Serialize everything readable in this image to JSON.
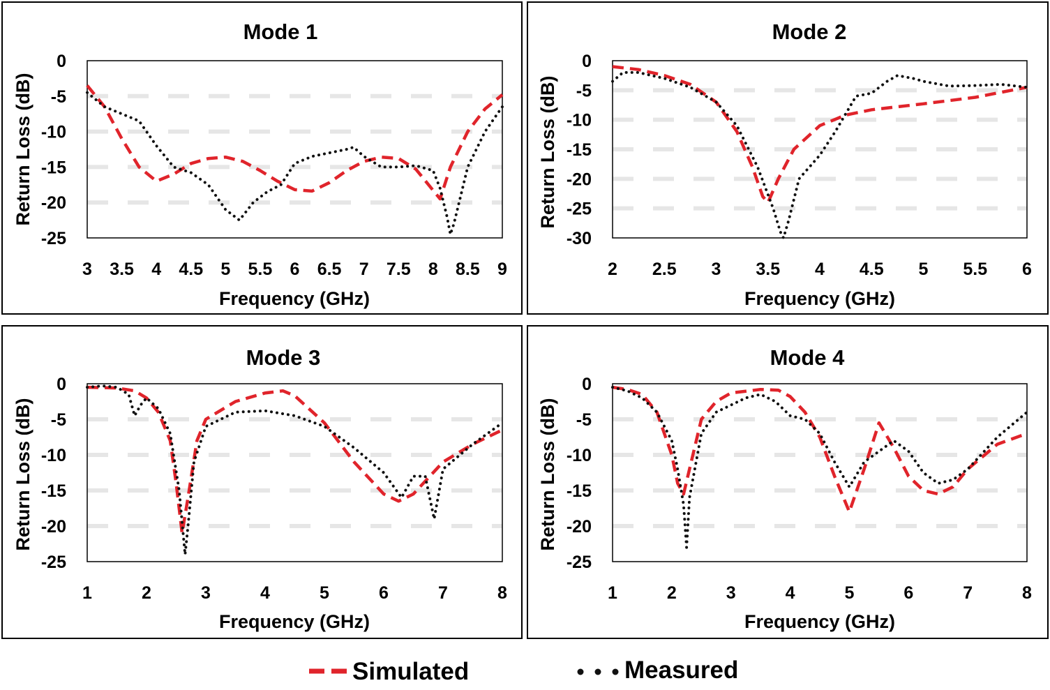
{
  "legend": {
    "simulated_label": "Simulated",
    "measured_label": "Measured"
  },
  "colors": {
    "simulated": "#e0242b",
    "measured": "#111111",
    "grid": "#e6e6e6",
    "frame": "#000000"
  },
  "chart_data": [
    {
      "type": "line",
      "title": "Mode 1",
      "xlabel": "Frequency (GHz)",
      "ylabel": "Return Loss (dB)",
      "xlim": [
        3,
        9
      ],
      "ylim": [
        -25,
        0
      ],
      "xticks": [
        3,
        3.5,
        4,
        4.5,
        5,
        5.5,
        6,
        6.5,
        7,
        7.5,
        8,
        8.5,
        9
      ],
      "yticks": [
        0,
        -5,
        -10,
        -15,
        -20,
        -25
      ],
      "series": [
        {
          "name": "Simulated",
          "x": [
            3,
            3.25,
            3.5,
            3.75,
            4,
            4.25,
            4.5,
            4.75,
            5,
            5.25,
            5.5,
            5.75,
            6,
            6.25,
            6.5,
            6.75,
            7,
            7.25,
            7.5,
            7.75,
            8,
            8.1,
            8.25,
            8.5,
            8.75,
            9
          ],
          "y": [
            -3.5,
            -6.5,
            -11,
            -15,
            -17,
            -16,
            -14.5,
            -13.8,
            -13.6,
            -14.2,
            -15.5,
            -17,
            -18.2,
            -18.4,
            -17.2,
            -15.5,
            -14.2,
            -13.6,
            -13.8,
            -15.3,
            -18.3,
            -19.5,
            -15,
            -10,
            -6.8,
            -4.8
          ]
        },
        {
          "name": "Measured",
          "x": [
            3,
            3.25,
            3.5,
            3.75,
            4,
            4.25,
            4.5,
            4.75,
            5,
            5.2,
            5.4,
            5.6,
            5.8,
            6,
            6.25,
            6.5,
            6.75,
            6.85,
            7,
            7.25,
            7.5,
            7.75,
            8,
            8.1,
            8.2,
            8.25,
            8.3,
            8.5,
            8.75,
            9
          ],
          "y": [
            -4.5,
            -6.5,
            -7.5,
            -8.5,
            -12,
            -15,
            -15.8,
            -17.5,
            -21,
            -22.5,
            -20,
            -18.5,
            -17.5,
            -14.5,
            -13.5,
            -13,
            -12.5,
            -12.2,
            -13.5,
            -15,
            -15,
            -14.8,
            -15.5,
            -18,
            -22,
            -24.5,
            -23,
            -15,
            -10,
            -6.5
          ]
        }
      ]
    },
    {
      "type": "line",
      "title": "Mode 2",
      "xlabel": "Frequency (GHz)",
      "ylabel": "Return Loss (dB)",
      "xlim": [
        2,
        6
      ],
      "ylim": [
        -30,
        0
      ],
      "xticks": [
        2,
        2.5,
        3,
        3.5,
        4,
        4.5,
        5,
        5.5,
        6
      ],
      "yticks": [
        0,
        -5,
        -10,
        -15,
        -20,
        -25,
        -30
      ],
      "series": [
        {
          "name": "Simulated",
          "x": [
            2,
            2.25,
            2.5,
            2.75,
            3,
            3.2,
            3.35,
            3.45,
            3.5,
            3.6,
            3.75,
            4,
            4.25,
            4.5,
            5,
            5.5,
            6
          ],
          "y": [
            -1,
            -1.5,
            -2.5,
            -4,
            -7,
            -12,
            -18,
            -23,
            -24,
            -20,
            -15,
            -11,
            -9.2,
            -8.3,
            -7.3,
            -6.2,
            -4.5
          ]
        },
        {
          "name": "Measured",
          "x": [
            2,
            2.1,
            2.25,
            2.5,
            2.75,
            3,
            3.2,
            3.4,
            3.55,
            3.62,
            3.65,
            3.7,
            3.8,
            4,
            4.15,
            4.25,
            4.35,
            4.5,
            4.65,
            4.75,
            4.9,
            5,
            5.25,
            5.5,
            5.75,
            6
          ],
          "y": [
            -3.5,
            -2,
            -2,
            -3,
            -4.5,
            -7,
            -11,
            -18,
            -25,
            -29,
            -30,
            -27,
            -20,
            -16,
            -12,
            -9,
            -6,
            -5.5,
            -3.5,
            -2.5,
            -3,
            -3.5,
            -4.3,
            -4.2,
            -4,
            -4.5
          ]
        }
      ]
    },
    {
      "type": "line",
      "title": "Mode 3",
      "xlabel": "Frequency (GHz)",
      "ylabel": "Return Loss (dB)",
      "xlim": [
        1,
        8
      ],
      "ylim": [
        -25,
        0
      ],
      "xticks": [
        1,
        2,
        3,
        4,
        5,
        6,
        7,
        8
      ],
      "yticks": [
        0,
        -5,
        -10,
        -15,
        -20,
        -25
      ],
      "series": [
        {
          "name": "Simulated",
          "x": [
            1,
            1.5,
            1.8,
            2,
            2.2,
            2.4,
            2.5,
            2.6,
            2.7,
            2.85,
            3,
            3.5,
            4,
            4.3,
            4.5,
            5,
            5.5,
            6,
            6.25,
            6.5,
            7,
            7.5,
            8
          ],
          "y": [
            -0.5,
            -0.6,
            -1,
            -2,
            -4,
            -8,
            -14,
            -21,
            -16,
            -8,
            -5,
            -2.5,
            -1.3,
            -1,
            -1.7,
            -5.5,
            -11,
            -15.5,
            -16.5,
            -15.5,
            -11,
            -8.5,
            -6.5
          ]
        },
        {
          "name": "Measured",
          "x": [
            1,
            1.25,
            1.5,
            1.7,
            1.8,
            1.9,
            2,
            2.2,
            2.4,
            2.55,
            2.65,
            2.7,
            2.8,
            3,
            3.5,
            4,
            4.5,
            5,
            5.5,
            6,
            6.3,
            6.5,
            6.7,
            6.85,
            7,
            7.5,
            8
          ],
          "y": [
            -0.5,
            -0.3,
            -0.5,
            -1.5,
            -4.5,
            -3,
            -2,
            -3.5,
            -7,
            -15,
            -24,
            -20,
            -11,
            -6,
            -4,
            -3.8,
            -4.5,
            -6,
            -9,
            -12.5,
            -16,
            -13,
            -13,
            -19,
            -12,
            -8.5,
            -5.5
          ]
        }
      ]
    },
    {
      "type": "line",
      "title": "Mode 4",
      "xlabel": "Frequency (GHz)",
      "ylabel": "Return Loss (dB)",
      "xlim": [
        1,
        8
      ],
      "ylim": [
        -25,
        0
      ],
      "xticks": [
        1,
        2,
        3,
        4,
        5,
        6,
        7,
        8
      ],
      "yticks": [
        0,
        -5,
        -10,
        -15,
        -20,
        -25
      ],
      "series": [
        {
          "name": "Simulated",
          "x": [
            1,
            1.25,
            1.5,
            1.75,
            2,
            2.1,
            2.2,
            2.3,
            2.5,
            2.75,
            3,
            3.5,
            3.8,
            4,
            4.25,
            4.5,
            4.75,
            5,
            5.25,
            5.5,
            5.75,
            6,
            6.25,
            6.5,
            6.75,
            7,
            7.5,
            8
          ],
          "y": [
            -0.5,
            -0.8,
            -1.5,
            -4,
            -10,
            -14,
            -15.5,
            -12,
            -5,
            -2.5,
            -1.3,
            -0.8,
            -0.9,
            -1.8,
            -4,
            -7.5,
            -13,
            -18,
            -12,
            -5.5,
            -9,
            -13,
            -15,
            -15.5,
            -14.5,
            -12,
            -8.5,
            -7
          ]
        },
        {
          "name": "Measured",
          "x": [
            1,
            1.25,
            1.5,
            1.75,
            2,
            2.1,
            2.2,
            2.25,
            2.3,
            2.5,
            2.75,
            3,
            3.25,
            3.5,
            3.75,
            4,
            4.25,
            4.5,
            4.75,
            5,
            5.25,
            5.5,
            5.75,
            6,
            6.25,
            6.5,
            6.75,
            7,
            7.5,
            8
          ],
          "y": [
            -0.5,
            -1,
            -2,
            -4,
            -8,
            -12,
            -17,
            -23,
            -16,
            -7,
            -4,
            -3,
            -2,
            -1.5,
            -2.5,
            -4.5,
            -5,
            -7,
            -11,
            -14.5,
            -11,
            -9.5,
            -8,
            -9.5,
            -12.5,
            -14,
            -13.5,
            -12,
            -7.5,
            -4
          ]
        }
      ]
    }
  ]
}
